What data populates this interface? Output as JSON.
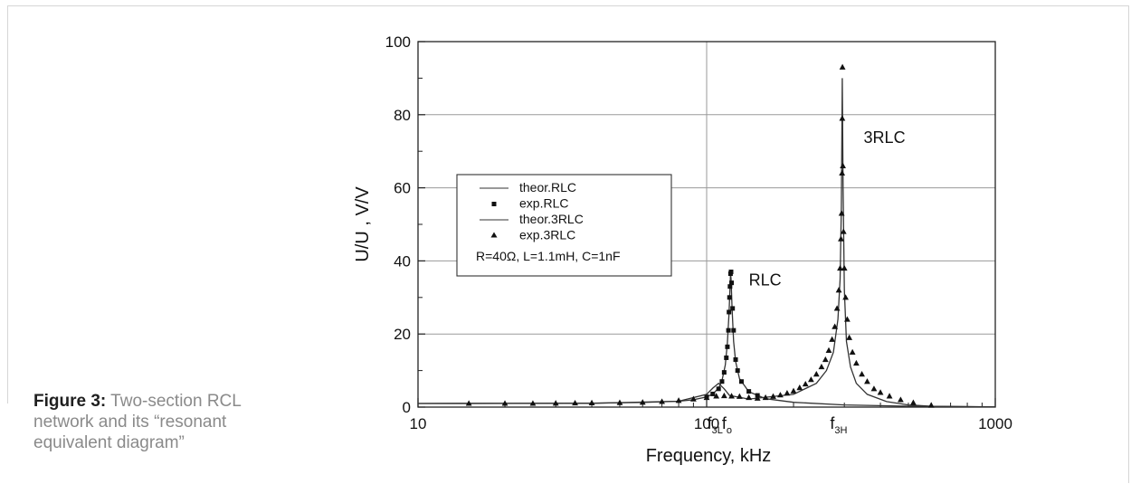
{
  "caption": {
    "lead": "Figure 3:",
    "text": " Two-section RCL network and its “resonant equivalent diagram”"
  },
  "chart_data": {
    "type": "line",
    "xscale": "log",
    "xlim": [
      10,
      1000
    ],
    "ylim": [
      0,
      100
    ],
    "xlabel": "Frequency, kHz",
    "ylabel": "U/U , V/V",
    "xticks": [
      "10",
      "100",
      "1000"
    ],
    "yticks": [
      "0",
      "20",
      "40",
      "60",
      "80",
      "100"
    ],
    "grid": true,
    "legend_position": "left-middle",
    "legend_note": "R=40Ω, L=1.1mH, C=1nF",
    "annotations": [
      {
        "text": "RLC",
        "x": 140,
        "y": 35
      },
      {
        "text": "3RLC",
        "x": 350,
        "y": 74
      },
      {
        "text": "f",
        "sub": "3L",
        "at": 110
      },
      {
        "text": "f",
        "sub": "o",
        "at": 121
      },
      {
        "text": "f",
        "sub": "3H",
        "at": 295
      }
    ],
    "series": [
      {
        "name": "theor.RLC",
        "style": "line",
        "x": [
          10,
          20,
          40,
          60,
          80,
          90,
          100,
          105,
          110,
          113,
          116,
          118,
          119.5,
          120.5,
          121,
          121.5,
          122.5,
          124,
          126,
          130,
          140,
          160,
          200,
          300,
          500,
          1000
        ],
        "y": [
          1.0,
          1.02,
          1.1,
          1.25,
          1.6,
          2.0,
          2.8,
          3.6,
          5.2,
          7.2,
          11.5,
          17.5,
          25.5,
          32.5,
          36.5,
          35,
          27,
          18,
          12.5,
          7.8,
          4.2,
          2.3,
          1.3,
          0.6,
          0.25,
          0.06
        ]
      },
      {
        "name": "exp.RLC",
        "style": "square",
        "x": [
          100,
          105,
          110,
          113,
          115,
          117,
          118,
          119,
          119.5,
          120,
          120.5,
          121,
          121.5,
          122,
          123,
          124,
          126,
          128,
          132,
          140,
          150
        ],
        "y": [
          2.8,
          3.6,
          5.0,
          7.0,
          9.5,
          13.5,
          16.5,
          21,
          26,
          30,
          33,
          36.5,
          37,
          34,
          27,
          21,
          13,
          10,
          7,
          4.3,
          3.2
        ]
      },
      {
        "name": "theor.3RLC",
        "style": "line",
        "x": [
          10,
          40,
          80,
          100,
          105,
          110,
          115,
          120,
          140,
          200,
          240,
          260,
          275,
          285,
          290,
          293,
          295,
          297,
          300,
          305,
          315,
          330,
          360,
          420,
          500,
          600,
          1000
        ],
        "y": [
          1.0,
          1.05,
          1.6,
          3.5,
          5.2,
          6.5,
          5.0,
          3.2,
          2.2,
          3.5,
          6.5,
          10,
          15,
          24,
          35,
          55,
          90,
          60,
          32,
          18,
          11,
          6.5,
          3.5,
          1.5,
          0.6,
          0.25,
          0.05
        ]
      },
      {
        "name": "exp.3RLC",
        "style": "triangle",
        "x": [
          15,
          20,
          25,
          30,
          35,
          40,
          50,
          60,
          70,
          80,
          90,
          100,
          108,
          115,
          122,
          130,
          140,
          150,
          160,
          170,
          180,
          190,
          200,
          210,
          220,
          230,
          240,
          250,
          258,
          265,
          272,
          278,
          283,
          287,
          290,
          292,
          293.5,
          294.5,
          295,
          295.5,
          296.5,
          298,
          300,
          303,
          307,
          312,
          320,
          330,
          345,
          360,
          380,
          400,
          430,
          470,
          520,
          600
        ],
        "y": [
          1.0,
          1.0,
          1.0,
          1.05,
          1.1,
          1.15,
          1.2,
          1.3,
          1.5,
          1.8,
          2.2,
          2.6,
          3.0,
          3.1,
          3.0,
          2.9,
          2.6,
          2.4,
          2.6,
          2.9,
          3.3,
          3.8,
          4.4,
          5.3,
          6.3,
          7.5,
          9.0,
          11,
          13,
          15.5,
          18.5,
          22,
          27,
          32,
          38,
          46,
          53,
          64,
          79,
          93,
          66,
          48,
          38,
          30,
          24,
          19,
          15,
          12,
          9,
          7,
          5,
          4,
          3,
          2,
          1.2,
          0.5
        ]
      }
    ]
  }
}
